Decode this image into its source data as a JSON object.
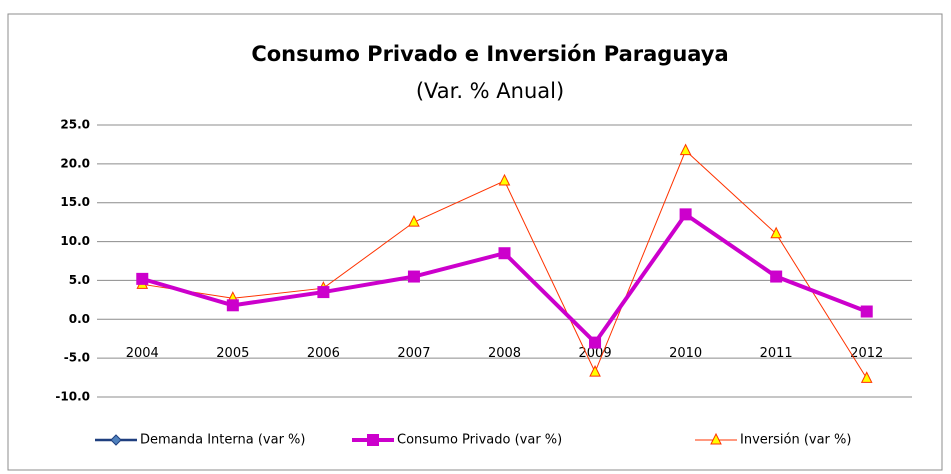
{
  "chart_data": {
    "type": "line",
    "title": "Consumo Privado e Inversión Paraguaya",
    "subtitle": "(Var. % Anual)",
    "categories": [
      "2004",
      "2005",
      "2006",
      "2007",
      "2008",
      "2009",
      "2010",
      "2011",
      "2012"
    ],
    "series": [
      {
        "name": "Demanda Interna (var %)",
        "color": "#1f3f7f",
        "values": [
          5.2,
          1.8,
          3.5,
          5.5,
          8.5,
          -3.0,
          13.5,
          5.5,
          1.0
        ]
      },
      {
        "name": "Consumo Privado (var %)",
        "color": "#cc00cc",
        "values": [
          5.2,
          1.8,
          3.5,
          5.5,
          8.5,
          -3.0,
          13.5,
          5.5,
          1.0
        ]
      },
      {
        "name": "Inversión (var %)",
        "color": "#ff3300",
        "values": [
          4.5,
          2.7,
          4.0,
          12.5,
          17.8,
          -6.8,
          21.7,
          11.0,
          -7.6
        ]
      }
    ],
    "ylim": [
      -10,
      25
    ],
    "yticks": [
      {
        "value": -10,
        "label": "-10.0"
      },
      {
        "value": -5,
        "label": "-5.0"
      },
      {
        "value": 0,
        "label": "0.0"
      },
      {
        "value": 5,
        "label": "5.0"
      },
      {
        "value": 10,
        "label": "10.0"
      },
      {
        "value": 15,
        "label": "15.0"
      },
      {
        "value": 20,
        "label": "20.0"
      },
      {
        "value": 25,
        "label": "25.0"
      }
    ],
    "grid": true,
    "legend": "bottom"
  }
}
